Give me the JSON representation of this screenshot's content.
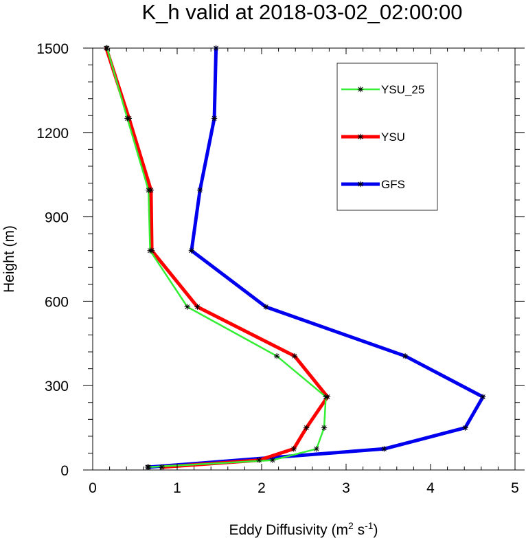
{
  "chart_data": {
    "type": "line",
    "title": "K_h valid at 2018-03-02_02:00:00",
    "xlabel": {
      "base": "Eddy Diffusivity (m",
      "sup1": "2",
      "mid": " s",
      "sup2": "-1",
      "end": ")"
    },
    "ylabel": "Height (m)",
    "xlim": [
      0,
      5
    ],
    "ylim": [
      0,
      1500
    ],
    "xticks": [
      0,
      1,
      2,
      3,
      4,
      5
    ],
    "yticks": [
      0,
      300,
      600,
      900,
      1200,
      1500
    ],
    "legend_position": "top-right",
    "grid": false,
    "series": [
      {
        "name": "YSU_25",
        "color": "#33ee33",
        "x": [
          0.65,
          2.13,
          2.65,
          2.74,
          2.76,
          2.18,
          1.12,
          0.68,
          0.66,
          0.41,
          0.17
        ],
        "y": [
          10,
          35,
          75,
          150,
          260,
          405,
          580,
          780,
          995,
          1250,
          1500
        ]
      },
      {
        "name": "YSU",
        "color": "#ff0000",
        "x": [
          0.82,
          1.97,
          2.38,
          2.53,
          2.78,
          2.39,
          1.24,
          0.7,
          0.69,
          0.43,
          0.16
        ],
        "y": [
          10,
          35,
          75,
          150,
          260,
          405,
          580,
          780,
          995,
          1250,
          1500
        ]
      },
      {
        "name": "GFS",
        "color": "#0000ee",
        "x": [
          0.66,
          3.45,
          4.41,
          4.62,
          3.7,
          2.05,
          1.17,
          1.27,
          1.44,
          1.46
        ],
        "y": [
          10,
          75,
          150,
          260,
          405,
          580,
          780,
          995,
          1250,
          1500
        ]
      }
    ]
  }
}
